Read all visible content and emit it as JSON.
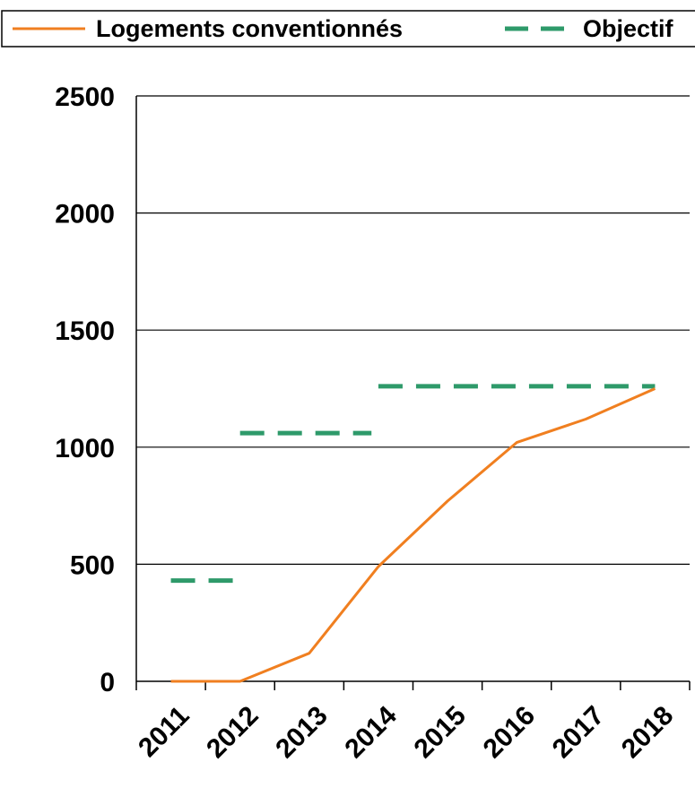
{
  "chart_data": {
    "type": "line",
    "categories": [
      "2011",
      "2012",
      "2013",
      "2014",
      "2015",
      "2016",
      "2017",
      "2018"
    ],
    "series": [
      {
        "name": "Logements conventionnés",
        "style": "solid",
        "color": "#F07F20",
        "points": [
          [
            0.5,
            0
          ],
          [
            1.5,
            0
          ],
          [
            2.5,
            120
          ],
          [
            3.5,
            490
          ],
          [
            4.5,
            770
          ],
          [
            5.5,
            1020
          ],
          [
            6.5,
            1120
          ],
          [
            7.5,
            1250
          ]
        ]
      },
      {
        "name": "Objectif",
        "style": "dashed",
        "color": "#2E9A6A",
        "segments": [
          {
            "x": [
              0.5,
              1.5
            ],
            "y": 430
          },
          {
            "x": [
              1.5,
              3.4
            ],
            "y": 1060
          },
          {
            "x": [
              3.5,
              7.5
            ],
            "y": 1260
          }
        ]
      }
    ],
    "yticks": [
      0,
      500,
      1000,
      1500,
      2000,
      2500
    ],
    "ylim": [
      0,
      2500
    ],
    "xlim": [
      0,
      8
    ],
    "grid": "horizontal",
    "legend": "top"
  }
}
